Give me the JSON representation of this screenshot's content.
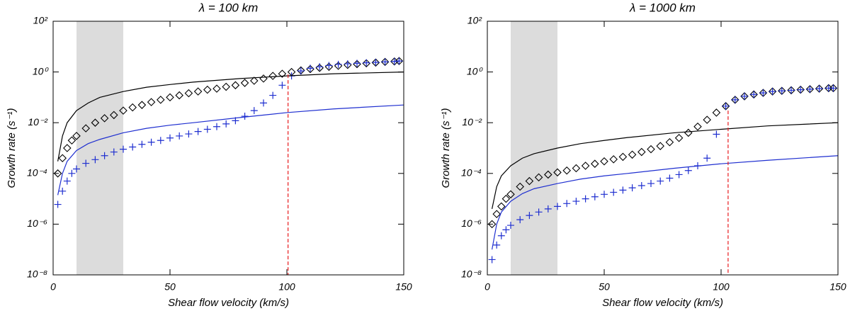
{
  "chart_data": [
    {
      "type": "line",
      "title": "λ = 100 km",
      "xlabel": "Shear flow velocity (km/s)",
      "ylabel": "Growth rate (s⁻¹)",
      "xlim": [
        0,
        150
      ],
      "xticks": [
        0,
        50,
        100,
        150
      ],
      "ylim": [
        1e-08,
        100
      ],
      "log_y": true,
      "yticks": [
        {
          "value": 1e-08,
          "label": "10⁻⁸"
        },
        {
          "value": 1e-06,
          "label": "10⁻⁶"
        },
        {
          "value": 0.0001,
          "label": "10⁻⁴"
        },
        {
          "value": 0.01,
          "label": "10⁻²"
        },
        {
          "value": 1,
          "label": "10⁰"
        },
        {
          "value": 100,
          "label": "10²"
        }
      ],
      "shaded_span": {
        "x": [
          10,
          30
        ],
        "color": "#dcdcdc"
      },
      "threshold": {
        "x": 100.5,
        "ytop": 0.8,
        "color": "#e8191c"
      },
      "series": [
        {
          "color": "#000000",
          "marker": "diamond",
          "x": [
            2,
            4,
            6,
            8,
            10,
            14,
            18,
            22,
            26,
            30,
            34,
            38,
            42,
            46,
            50,
            54,
            58,
            62,
            66,
            70,
            74,
            78,
            82,
            86,
            90,
            94,
            98,
            102,
            106,
            110,
            114,
            118,
            122,
            126,
            130,
            134,
            138,
            142,
            146,
            148
          ],
          "values": [
            0.0001,
            0.0004,
            0.001,
            0.002,
            0.003,
            0.006,
            0.01,
            0.015,
            0.02,
            0.03,
            0.04,
            0.05,
            0.065,
            0.08,
            0.1,
            0.12,
            0.145,
            0.17,
            0.2,
            0.22,
            0.26,
            0.3,
            0.37,
            0.45,
            0.55,
            0.7,
            0.85,
            1.0,
            1.15,
            1.3,
            1.45,
            1.6,
            1.75,
            1.9,
            2.05,
            2.2,
            2.35,
            2.5,
            2.6,
            2.7
          ]
        },
        {
          "color": "#1f2fd0",
          "marker": "plus",
          "x": [
            2,
            4,
            6,
            8,
            10,
            14,
            18,
            22,
            26,
            30,
            34,
            38,
            42,
            46,
            50,
            54,
            58,
            62,
            66,
            70,
            74,
            78,
            82,
            86,
            90,
            94,
            98,
            102,
            106,
            110,
            114,
            118,
            122,
            126,
            130,
            134,
            138,
            142,
            146,
            148
          ],
          "values": [
            6e-06,
            2e-05,
            5e-05,
            0.0001,
            0.00015,
            0.00025,
            0.00035,
            0.0005,
            0.0007,
            0.0009,
            0.0011,
            0.0014,
            0.0017,
            0.002,
            0.0025,
            0.003,
            0.0036,
            0.0045,
            0.0055,
            0.007,
            0.009,
            0.012,
            0.018,
            0.03,
            0.06,
            0.12,
            0.3,
            0.7,
            1.1,
            1.4,
            1.6,
            1.8,
            2.0,
            2.1,
            2.2,
            2.3,
            2.4,
            2.5,
            2.6,
            2.7
          ]
        },
        {
          "color": "#000000",
          "marker": null,
          "x": [
            2,
            4,
            6,
            10,
            15,
            20,
            30,
            40,
            50,
            60,
            80,
            100,
            120,
            150
          ],
          "values": [
            0.0003,
            0.003,
            0.01,
            0.03,
            0.06,
            0.1,
            0.17,
            0.25,
            0.32,
            0.4,
            0.55,
            0.7,
            0.85,
            1.0
          ]
        },
        {
          "color": "#1f2fd0",
          "marker": null,
          "x": [
            2,
            4,
            6,
            10,
            15,
            20,
            30,
            40,
            50,
            60,
            80,
            100,
            120,
            150
          ],
          "values": [
            1.4e-05,
            0.0001,
            0.0003,
            0.0008,
            0.0015,
            0.0022,
            0.004,
            0.006,
            0.008,
            0.01,
            0.016,
            0.025,
            0.035,
            0.05
          ]
        }
      ]
    },
    {
      "type": "line",
      "title": "λ = 1000 km",
      "xlabel": "Shear flow velocity (km/s)",
      "ylabel": "Growth rate (s⁻¹)",
      "xlim": [
        0,
        150
      ],
      "xticks": [
        0,
        50,
        100,
        150
      ],
      "ylim": [
        1e-08,
        100
      ],
      "log_y": true,
      "yticks": [
        {
          "value": 1e-08,
          "label": "10⁻⁸"
        },
        {
          "value": 1e-06,
          "label": "10⁻⁶"
        },
        {
          "value": 0.0001,
          "label": "10⁻⁴"
        },
        {
          "value": 0.01,
          "label": "10⁻²"
        },
        {
          "value": 1,
          "label": "10⁰"
        },
        {
          "value": 100,
          "label": "10²"
        }
      ],
      "shaded_span": {
        "x": [
          10,
          30
        ],
        "color": "#dcdcdc"
      },
      "threshold": {
        "x": 103,
        "ytop": 0.03,
        "color": "#e8191c"
      },
      "series": [
        {
          "color": "#000000",
          "marker": "diamond",
          "x": [
            2,
            4,
            6,
            8,
            10,
            14,
            18,
            22,
            26,
            30,
            34,
            38,
            42,
            46,
            50,
            54,
            58,
            62,
            66,
            70,
            74,
            78,
            82,
            86,
            90,
            94,
            98,
            102,
            106,
            110,
            114,
            118,
            122,
            126,
            130,
            134,
            138,
            142,
            146,
            148
          ],
          "values": [
            1e-06,
            2.5e-06,
            5e-06,
            1e-05,
            1.5e-05,
            3e-05,
            5e-05,
            7e-05,
            9e-05,
            0.00011,
            0.00013,
            0.00016,
            0.0002,
            0.00024,
            0.0003,
            0.00036,
            0.00045,
            0.00055,
            0.0007,
            0.0009,
            0.0012,
            0.0017,
            0.0025,
            0.004,
            0.007,
            0.013,
            0.025,
            0.045,
            0.08,
            0.11,
            0.13,
            0.15,
            0.17,
            0.18,
            0.19,
            0.2,
            0.21,
            0.22,
            0.23,
            0.23
          ]
        },
        {
          "color": "#1f2fd0",
          "marker": "plus",
          "x": [
            2,
            4,
            6,
            8,
            10,
            14,
            18,
            22,
            26,
            30,
            34,
            38,
            42,
            46,
            50,
            54,
            58,
            62,
            66,
            70,
            74,
            78,
            82,
            86,
            90,
            94,
            98,
            102,
            106,
            110,
            114,
            118,
            122,
            126,
            130,
            134,
            138,
            142,
            146,
            148
          ],
          "values": [
            4e-08,
            1.5e-07,
            3.5e-07,
            6e-07,
            9e-07,
            1.5e-06,
            2.2e-06,
            3e-06,
            4e-06,
            5e-06,
            6.5e-06,
            8e-06,
            1e-05,
            1.2e-05,
            1.5e-05,
            1.8e-05,
            2.2e-05,
            2.7e-05,
            3.3e-05,
            4e-05,
            5e-05,
            6.5e-05,
            9e-05,
            0.00013,
            0.0002,
            0.0004,
            0.0035,
            0.045,
            0.08,
            0.11,
            0.13,
            0.15,
            0.17,
            0.18,
            0.19,
            0.2,
            0.21,
            0.22,
            0.23,
            0.23
          ]
        },
        {
          "color": "#000000",
          "marker": null,
          "x": [
            2,
            4,
            6,
            10,
            15,
            20,
            30,
            40,
            50,
            60,
            80,
            100,
            120,
            150
          ],
          "values": [
            4e-06,
            3e-05,
            8e-05,
            0.0002,
            0.0004,
            0.0006,
            0.001,
            0.0015,
            0.002,
            0.0026,
            0.004,
            0.0055,
            0.0075,
            0.01
          ]
        },
        {
          "color": "#1f2fd0",
          "marker": null,
          "x": [
            2,
            4,
            6,
            10,
            15,
            20,
            30,
            40,
            50,
            60,
            80,
            100,
            120,
            150
          ],
          "values": [
            1e-07,
            1e-06,
            3e-06,
            8e-06,
            1.6e-05,
            2.5e-05,
            4e-05,
            6e-05,
            8e-05,
            0.0001,
            0.00016,
            0.00024,
            0.00033,
            0.0005
          ]
        }
      ]
    }
  ]
}
